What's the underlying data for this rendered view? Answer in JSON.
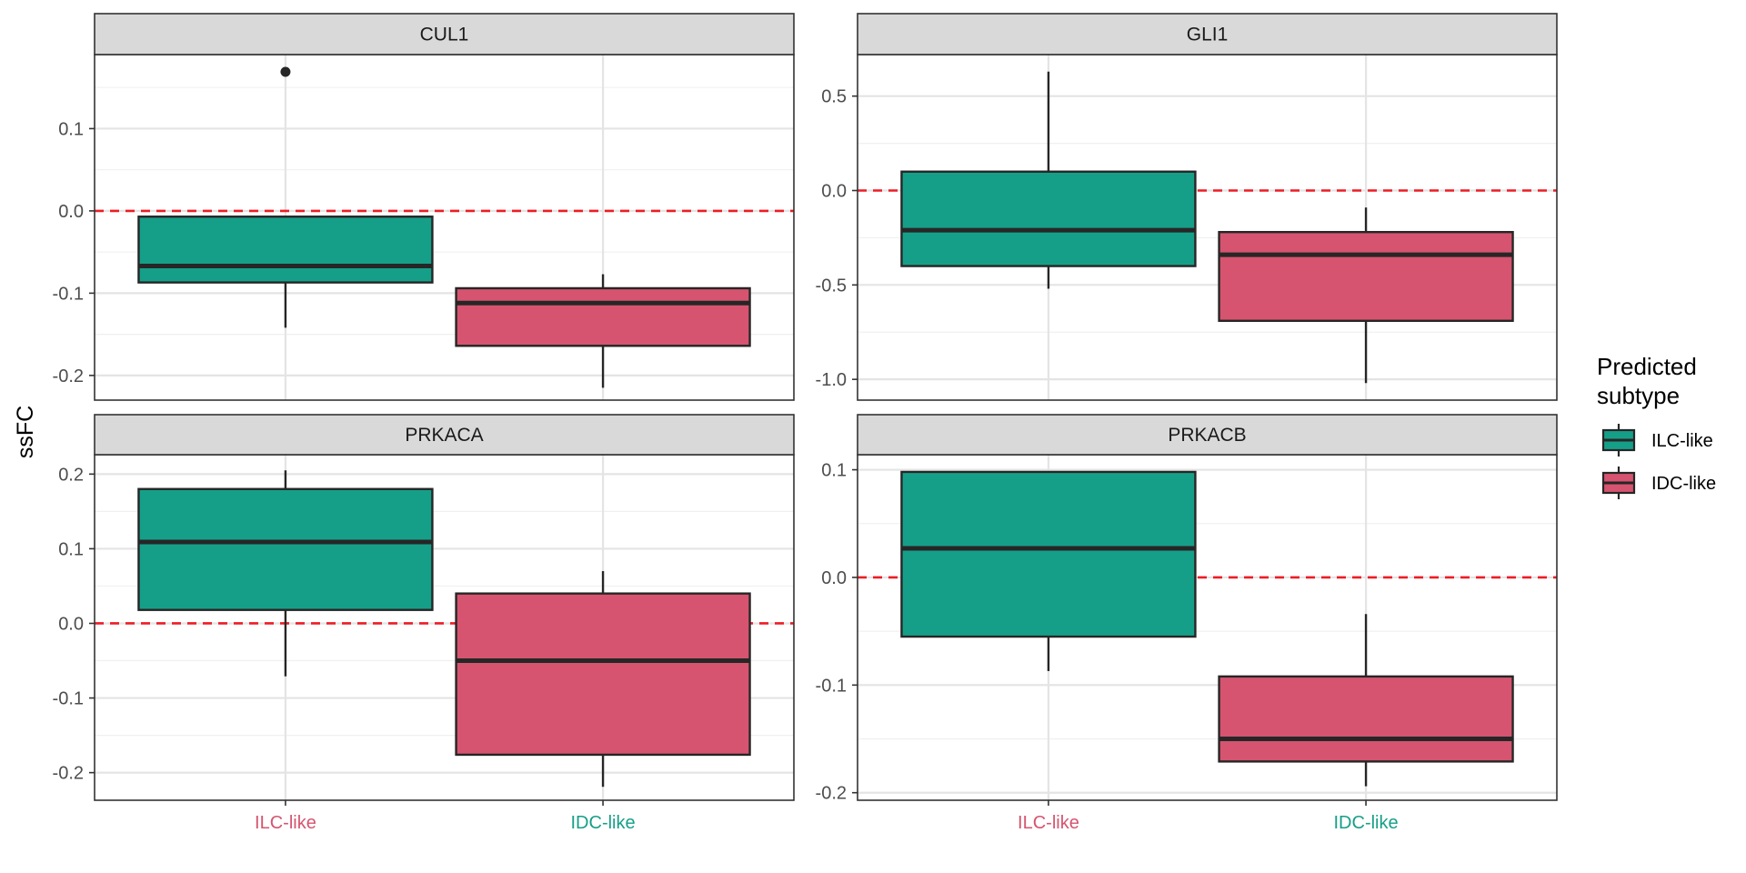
{
  "chart_data": {
    "type": "boxplot",
    "ylabel": "ssFC",
    "x_categories": [
      "ILC-like",
      "IDC-like"
    ],
    "x_tick_colors": [
      "#d6546f",
      "#169f88"
    ],
    "reference_line": {
      "y": 0,
      "style": "dashed",
      "color": "#ee1c24"
    },
    "legend": {
      "title_lines": [
        "Predicted",
        "subtype"
      ],
      "placement": "right",
      "entries": [
        {
          "label": "ILC-like",
          "color": "#169f88"
        },
        {
          "label": "IDC-like",
          "color": "#d6546f"
        }
      ]
    },
    "panels": [
      {
        "title": "CUL1",
        "ylim": [
          -0.23,
          0.19
        ],
        "yticks": [
          -0.2,
          -0.1,
          0.0,
          0.1
        ],
        "tick_labels": [
          "-0.2",
          "-0.1",
          "0.0",
          "0.1"
        ],
        "boxes": [
          {
            "group": "ILC-like",
            "color": "#169f88",
            "whisker_low": -0.142,
            "q1": -0.087,
            "median": -0.067,
            "q3": -0.007,
            "whisker_high": -0.007,
            "outliers": [
              0.169
            ]
          },
          {
            "group": "IDC-like",
            "color": "#d6546f",
            "whisker_low": -0.215,
            "q1": -0.164,
            "median": -0.112,
            "q3": -0.094,
            "whisker_high": -0.077,
            "outliers": []
          }
        ]
      },
      {
        "title": "GLI1",
        "ylim": [
          -1.11,
          0.72
        ],
        "yticks": [
          -1.0,
          -0.5,
          0.0,
          0.5
        ],
        "tick_labels": [
          "-1.0",
          "-0.5",
          "0.0",
          "0.5"
        ],
        "boxes": [
          {
            "group": "ILC-like",
            "color": "#169f88",
            "whisker_low": -0.52,
            "q1": -0.4,
            "median": -0.21,
            "q3": 0.1,
            "whisker_high": 0.63,
            "outliers": []
          },
          {
            "group": "IDC-like",
            "color": "#d6546f",
            "whisker_low": -1.02,
            "q1": -0.69,
            "median": -0.34,
            "q3": -0.22,
            "whisker_high": -0.09,
            "outliers": []
          }
        ]
      },
      {
        "title": "PRKACA",
        "ylim": [
          -0.237,
          0.226
        ],
        "yticks": [
          -0.2,
          -0.1,
          0.0,
          0.1,
          0.2
        ],
        "tick_labels": [
          "-0.2",
          "-0.1",
          "0.0",
          "0.1",
          "0.2"
        ],
        "boxes": [
          {
            "group": "ILC-like",
            "color": "#169f88",
            "whisker_low": -0.071,
            "q1": 0.018,
            "median": 0.109,
            "q3": 0.18,
            "whisker_high": 0.205,
            "outliers": []
          },
          {
            "group": "IDC-like",
            "color": "#d6546f",
            "whisker_low": -0.219,
            "q1": -0.176,
            "median": -0.05,
            "q3": 0.04,
            "whisker_high": 0.07,
            "outliers": []
          }
        ]
      },
      {
        "title": "PRKACB",
        "ylim": [
          -0.207,
          0.114
        ],
        "yticks": [
          -0.2,
          -0.1,
          0.0,
          0.1
        ],
        "tick_labels": [
          "-0.2",
          "-0.1",
          "0.0",
          "0.1"
        ],
        "boxes": [
          {
            "group": "ILC-like",
            "color": "#169f88",
            "whisker_low": -0.087,
            "q1": -0.055,
            "median": 0.027,
            "q3": 0.098,
            "whisker_high": 0.098,
            "outliers": []
          },
          {
            "group": "IDC-like",
            "color": "#d6546f",
            "whisker_low": -0.194,
            "q1": -0.171,
            "median": -0.15,
            "q3": -0.092,
            "whisker_high": -0.034,
            "outliers": []
          }
        ]
      }
    ]
  }
}
